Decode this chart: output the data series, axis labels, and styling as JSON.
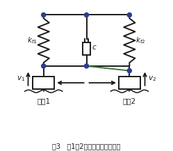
{
  "title": "图3   第1、2轴互联悬架物理模型",
  "bg_color": "#ffffff",
  "line_color": "#1a1a1a",
  "spring_color": "#1a1a1a",
  "circle_color": "#2d3d8f",
  "arrow_color": "#1a1a1a",
  "green_line_color": "#3a7a3a",
  "label_kt1": "$k_{t1}$",
  "label_kt2": "$k_{t2}$",
  "label_c": "$c$",
  "label_v1": "$v_1$",
  "label_v2": "$v_2$",
  "label_wheel1": "车轮1",
  "label_wheel2": "车轮2",
  "fig_width": 2.49,
  "fig_height": 2.17,
  "dpi": 100
}
